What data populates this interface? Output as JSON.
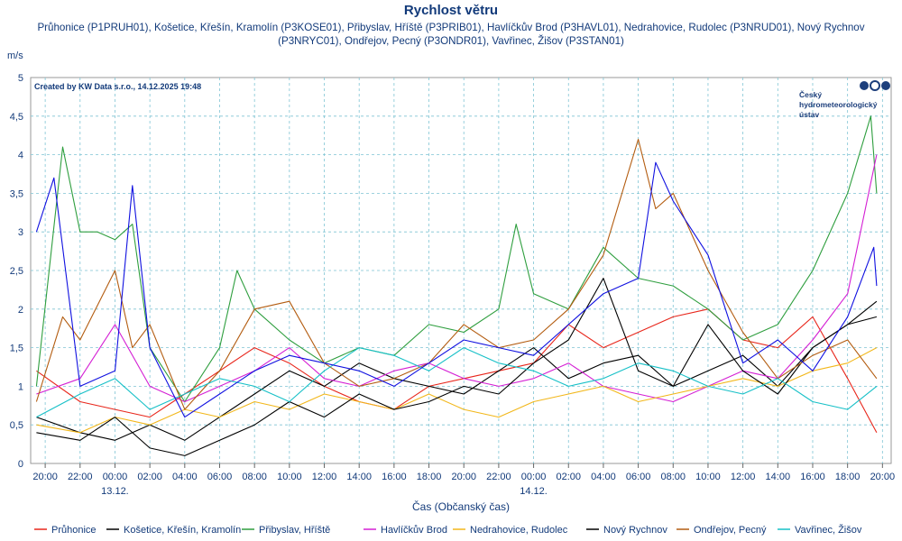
{
  "chart_data": {
    "type": "line",
    "title": "Rychlost větru",
    "subtitle_lines": [
      "Průhonice (P1PRUH01), Košetice, Křešín, Kramolín (P3KOSE01), Přibyslav, Hříště (P3PRIB01), Havlíčkův Brod (P3HAVL01), Nedrahovice, Rudolec (P3NRUD01), Nový Rychnov",
      "(P3NRYC01), Ondřejov, Pecný (P3ONDR01), Vavřinec, Žišov (P3STAN01)"
    ],
    "ylabel": "m/s",
    "xlabel": "Čas (Občanský čas)",
    "credit": "Created by KW Data s.r.o., 14.12.2025 19:48",
    "logo_text": [
      "Český",
      "hydrometeorologický",
      "ústav"
    ],
    "ylim": [
      0,
      5
    ],
    "yticks": [
      "0",
      "0,5",
      "1",
      "1,5",
      "2",
      "2,5",
      "3",
      "3,5",
      "4",
      "4,5",
      "5"
    ],
    "x_start": "2025-12-12T19:10",
    "x_end": "2025-12-14T20:30",
    "x_ticks": [
      "2025-12-12T20:00",
      "2025-12-12T22:00",
      "2025-12-13T00:00",
      "2025-12-13T02:00",
      "2025-12-13T04:00",
      "2025-12-13T06:00",
      "2025-12-13T08:00",
      "2025-12-13T10:00",
      "2025-12-13T12:00",
      "2025-12-13T14:00",
      "2025-12-13T16:00",
      "2025-12-13T18:00",
      "2025-12-13T20:00",
      "2025-12-13T22:00",
      "2025-12-14T00:00",
      "2025-12-14T02:00",
      "2025-12-14T04:00",
      "2025-12-14T06:00",
      "2025-12-14T08:00",
      "2025-12-14T10:00",
      "2025-12-14T12:00",
      "2025-12-14T14:00",
      "2025-12-14T16:00",
      "2025-12-14T18:00",
      "2025-12-14T20:00"
    ],
    "x_tick_labels": [
      "20:00",
      "22:00",
      "00:00",
      "02:00",
      "04:00",
      "06:00",
      "08:00",
      "10:00",
      "12:00",
      "14:00",
      "16:00",
      "18:00",
      "20:00",
      "22:00",
      "00:00",
      "02:00",
      "04:00",
      "06:00",
      "08:00",
      "10:00",
      "12:00",
      "14:00",
      "16:00",
      "18:00",
      "20:00"
    ],
    "date_labels": [
      {
        "at": "2025-12-13T00:00",
        "text": "13.12."
      },
      {
        "at": "2025-12-14T00:00",
        "text": "14.12."
      }
    ],
    "grid": true,
    "legend_position": "bottom",
    "series": [
      {
        "name": "Průhonice",
        "color": "#e8261b",
        "x": [
          "2025-12-12T19:30",
          "2025-12-12T22:00",
          "2025-12-13T00:00",
          "2025-12-13T02:00",
          "2025-12-13T04:00",
          "2025-12-13T06:00",
          "2025-12-13T08:00",
          "2025-12-13T10:00",
          "2025-12-13T12:00",
          "2025-12-13T14:00",
          "2025-12-13T16:00",
          "2025-12-13T18:00",
          "2025-12-13T20:00",
          "2025-12-13T22:00",
          "2025-12-14T00:00",
          "2025-12-14T02:00",
          "2025-12-14T04:00",
          "2025-12-14T06:00",
          "2025-12-14T08:00",
          "2025-12-14T10:00",
          "2025-12-14T12:00",
          "2025-12-14T14:00",
          "2025-12-14T16:00",
          "2025-12-14T18:00",
          "2025-12-14T19:40"
        ],
        "y": [
          1.2,
          0.8,
          0.7,
          0.6,
          0.9,
          1.2,
          1.5,
          1.3,
          1.0,
          0.8,
          0.7,
          1.0,
          1.1,
          1.2,
          1.3,
          1.8,
          1.5,
          1.7,
          1.9,
          2.0,
          1.6,
          1.5,
          1.9,
          1.1,
          0.4
        ]
      },
      {
        "name": "Košetice, Křešín, Kramolín",
        "color": "#000000",
        "x": [
          "2025-12-12T19:30",
          "2025-12-12T22:00",
          "2025-12-13T00:00",
          "2025-12-13T02:00",
          "2025-12-13T04:00",
          "2025-12-13T06:00",
          "2025-12-13T08:00",
          "2025-12-13T10:00",
          "2025-12-13T12:00",
          "2025-12-13T14:00",
          "2025-12-13T16:00",
          "2025-12-13T18:00",
          "2025-12-13T20:00",
          "2025-12-13T22:00",
          "2025-12-14T00:00",
          "2025-12-14T02:00",
          "2025-12-14T04:00",
          "2025-12-14T06:00",
          "2025-12-14T08:00",
          "2025-12-14T10:00",
          "2025-12-14T12:00",
          "2025-12-14T14:00",
          "2025-12-14T16:00",
          "2025-12-14T18:00",
          "2025-12-14T19:40"
        ],
        "y": [
          0.6,
          0.4,
          0.3,
          0.5,
          0.3,
          0.6,
          0.9,
          1.2,
          1.0,
          1.3,
          1.1,
          1.0,
          0.9,
          1.2,
          1.5,
          1.1,
          1.3,
          1.4,
          1.0,
          1.2,
          1.4,
          1.0,
          1.5,
          1.8,
          2.1
        ]
      },
      {
        "name": "Přibyslav, Hříště",
        "color": "#2e9e3e",
        "x": [
          "2025-12-12T19:30",
          "2025-12-12T21:00",
          "2025-12-12T22:00",
          "2025-12-12T23:00",
          "2025-12-13T00:00",
          "2025-12-13T01:00",
          "2025-12-13T02:00",
          "2025-12-13T04:00",
          "2025-12-13T06:00",
          "2025-12-13T07:00",
          "2025-12-13T08:00",
          "2025-12-13T10:00",
          "2025-12-13T12:00",
          "2025-12-13T14:00",
          "2025-12-13T16:00",
          "2025-12-13T18:00",
          "2025-12-13T20:00",
          "2025-12-13T22:00",
          "2025-12-13T23:00",
          "2025-12-14T00:00",
          "2025-12-14T02:00",
          "2025-12-14T04:00",
          "2025-12-14T06:00",
          "2025-12-14T08:00",
          "2025-12-14T10:00",
          "2025-12-14T12:00",
          "2025-12-14T14:00",
          "2025-12-14T16:00",
          "2025-12-14T18:00",
          "2025-12-14T19:20",
          "2025-12-14T19:40"
        ],
        "y": [
          1.0,
          4.1,
          3.0,
          3.0,
          2.9,
          3.1,
          1.5,
          0.8,
          1.5,
          2.5,
          2.0,
          1.6,
          1.3,
          1.5,
          1.4,
          1.8,
          1.7,
          2.0,
          3.1,
          2.2,
          2.0,
          2.8,
          2.4,
          2.3,
          2.0,
          1.6,
          1.8,
          2.5,
          3.5,
          4.5,
          3.5
        ]
      },
      {
        "name": "Havlíčkův Brod",
        "color": "#d41fd4",
        "x": [
          "2025-12-12T19:30",
          "2025-12-12T22:00",
          "2025-12-13T00:00",
          "2025-12-13T02:00",
          "2025-12-13T04:00",
          "2025-12-13T06:00",
          "2025-12-13T08:00",
          "2025-12-13T10:00",
          "2025-12-13T12:00",
          "2025-12-13T14:00",
          "2025-12-13T16:00",
          "2025-12-13T18:00",
          "2025-12-13T20:00",
          "2025-12-13T22:00",
          "2025-12-14T00:00",
          "2025-12-14T02:00",
          "2025-12-14T04:00",
          "2025-12-14T06:00",
          "2025-12-14T08:00",
          "2025-12-14T10:00",
          "2025-12-14T12:00",
          "2025-12-14T14:00",
          "2025-12-14T16:00",
          "2025-12-14T18:00",
          "2025-12-14T19:40"
        ],
        "y": [
          0.9,
          1.1,
          1.8,
          1.0,
          0.8,
          1.0,
          1.2,
          1.5,
          1.1,
          1.0,
          1.2,
          1.3,
          1.1,
          1.0,
          1.1,
          1.3,
          1.0,
          0.9,
          0.8,
          1.0,
          1.2,
          1.1,
          1.6,
          2.2,
          4.0
        ]
      },
      {
        "name": "Nedrahovice, Rudolec",
        "color": "#f2b71a",
        "x": [
          "2025-12-12T19:30",
          "2025-12-12T22:00",
          "2025-12-13T00:00",
          "2025-12-13T02:00",
          "2025-12-13T04:00",
          "2025-12-13T06:00",
          "2025-12-13T08:00",
          "2025-12-13T10:00",
          "2025-12-13T12:00",
          "2025-12-13T14:00",
          "2025-12-13T16:00",
          "2025-12-13T18:00",
          "2025-12-13T20:00",
          "2025-12-13T22:00",
          "2025-12-14T00:00",
          "2025-12-14T02:00",
          "2025-12-14T04:00",
          "2025-12-14T06:00",
          "2025-12-14T08:00",
          "2025-12-14T10:00",
          "2025-12-14T12:00",
          "2025-12-14T14:00",
          "2025-12-14T16:00",
          "2025-12-14T18:00",
          "2025-12-14T19:40"
        ],
        "y": [
          0.5,
          0.4,
          0.6,
          0.5,
          0.7,
          0.6,
          0.8,
          0.7,
          0.9,
          0.8,
          0.7,
          0.9,
          0.7,
          0.6,
          0.8,
          0.9,
          1.0,
          0.8,
          0.9,
          1.0,
          1.1,
          1.0,
          1.2,
          1.3,
          1.5
        ]
      },
      {
        "name": "Nový Rychnov",
        "color": "#000000",
        "x": [
          "2025-12-12T19:30",
          "2025-12-12T22:00",
          "2025-12-13T00:00",
          "2025-12-13T02:00",
          "2025-12-13T04:00",
          "2025-12-13T06:00",
          "2025-12-13T08:00",
          "2025-12-13T10:00",
          "2025-12-13T12:00",
          "2025-12-13T14:00",
          "2025-12-13T16:00",
          "2025-12-13T18:00",
          "2025-12-13T20:00",
          "2025-12-13T22:00",
          "2025-12-14T00:00",
          "2025-12-14T02:00",
          "2025-12-14T04:00",
          "2025-12-14T06:00",
          "2025-12-14T08:00",
          "2025-12-14T10:00",
          "2025-12-14T12:00",
          "2025-12-14T14:00",
          "2025-12-14T16:00",
          "2025-12-14T18:00",
          "2025-12-14T19:40"
        ],
        "y": [
          0.4,
          0.3,
          0.6,
          0.2,
          0.1,
          0.3,
          0.5,
          0.8,
          0.6,
          0.9,
          0.7,
          0.8,
          1.0,
          0.9,
          1.3,
          1.6,
          2.4,
          1.2,
          1.0,
          1.8,
          1.2,
          0.9,
          1.5,
          1.8,
          1.9
        ]
      },
      {
        "name": "Ondřejov, Pecný",
        "color": "#b35c10",
        "x": [
          "2025-12-12T19:30",
          "2025-12-12T21:00",
          "2025-12-12T22:00",
          "2025-12-13T00:00",
          "2025-12-13T01:00",
          "2025-12-13T02:00",
          "2025-12-13T04:00",
          "2025-12-13T06:00",
          "2025-12-13T08:00",
          "2025-12-13T10:00",
          "2025-12-13T12:00",
          "2025-12-13T14:00",
          "2025-12-13T16:00",
          "2025-12-13T18:00",
          "2025-12-13T20:00",
          "2025-12-13T22:00",
          "2025-12-14T00:00",
          "2025-12-14T02:00",
          "2025-12-14T04:00",
          "2025-12-14T06:00",
          "2025-12-14T07:00",
          "2025-12-14T08:00",
          "2025-12-14T10:00",
          "2025-12-14T12:00",
          "2025-12-14T14:00",
          "2025-12-14T16:00",
          "2025-12-14T18:00",
          "2025-12-14T19:40"
        ],
        "y": [
          0.8,
          1.9,
          1.6,
          2.5,
          1.5,
          1.8,
          0.7,
          1.2,
          2.0,
          2.1,
          1.3,
          1.0,
          1.1,
          1.3,
          1.8,
          1.5,
          1.6,
          2.0,
          2.7,
          4.2,
          3.3,
          3.5,
          2.5,
          1.7,
          1.1,
          1.4,
          1.6,
          1.1
        ]
      },
      {
        "name": "Vavřinec, Žišov",
        "color": "#16c0c7",
        "x": [
          "2025-12-12T19:30",
          "2025-12-12T22:00",
          "2025-12-13T00:00",
          "2025-12-13T02:00",
          "2025-12-13T04:00",
          "2025-12-13T06:00",
          "2025-12-13T08:00",
          "2025-12-13T10:00",
          "2025-12-13T12:00",
          "2025-12-13T14:00",
          "2025-12-13T16:00",
          "2025-12-13T18:00",
          "2025-12-13T20:00",
          "2025-12-13T22:00",
          "2025-12-14T00:00",
          "2025-12-14T02:00",
          "2025-12-14T04:00",
          "2025-12-14T06:00",
          "2025-12-14T08:00",
          "2025-12-14T10:00",
          "2025-12-14T12:00",
          "2025-12-14T14:00",
          "2025-12-14T16:00",
          "2025-12-14T18:00",
          "2025-12-14T19:40"
        ],
        "y": [
          0.6,
          0.9,
          1.1,
          0.7,
          0.9,
          1.1,
          1.0,
          0.8,
          1.2,
          1.5,
          1.4,
          1.2,
          1.5,
          1.3,
          1.2,
          1.0,
          1.1,
          1.3,
          1.2,
          1.0,
          0.9,
          1.1,
          0.8,
          0.7,
          1.0
        ]
      },
      {
        "name": "",
        "color": "#1010e0",
        "x": [
          "2025-12-12T19:30",
          "2025-12-12T20:30",
          "2025-12-12T22:00",
          "2025-12-13T00:00",
          "2025-12-13T01:00",
          "2025-12-13T02:00",
          "2025-12-13T04:00",
          "2025-12-13T06:00",
          "2025-12-13T08:00",
          "2025-12-13T10:00",
          "2025-12-13T12:00",
          "2025-12-13T14:00",
          "2025-12-13T16:00",
          "2025-12-13T18:00",
          "2025-12-13T20:00",
          "2025-12-13T22:00",
          "2025-12-14T00:00",
          "2025-12-14T02:00",
          "2025-12-14T04:00",
          "2025-12-14T06:00",
          "2025-12-14T07:00",
          "2025-12-14T08:00",
          "2025-12-14T10:00",
          "2025-12-14T12:00",
          "2025-12-14T14:00",
          "2025-12-14T16:00",
          "2025-12-14T18:00",
          "2025-12-14T19:30",
          "2025-12-14T19:40"
        ],
        "y": [
          3.0,
          3.7,
          1.0,
          1.2,
          3.6,
          1.5,
          0.6,
          0.9,
          1.2,
          1.4,
          1.3,
          1.2,
          1.0,
          1.3,
          1.6,
          1.5,
          1.4,
          1.8,
          2.2,
          2.4,
          3.9,
          3.4,
          2.7,
          1.3,
          1.6,
          1.2,
          1.9,
          2.8,
          2.3
        ]
      }
    ]
  }
}
